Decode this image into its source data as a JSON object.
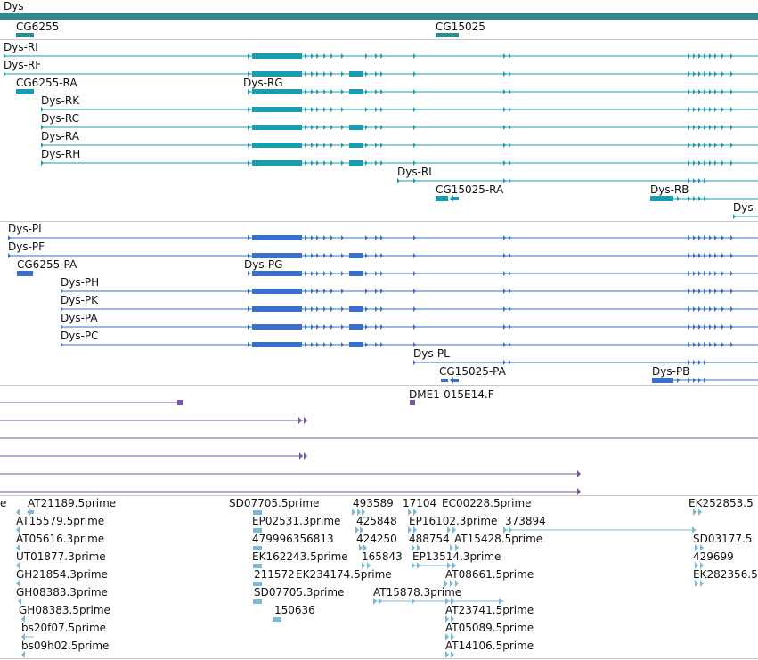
{
  "gene": {
    "label": "Dys",
    "color": "#2e8b8b",
    "subgenes": [
      {
        "id": "cg6255",
        "label": "CG6255"
      },
      {
        "id": "cg15025",
        "label": "CG15025"
      }
    ]
  },
  "transcripts": {
    "color": "#1a9cb0",
    "rows": [
      {
        "label": "Dys-RI"
      },
      {
        "label": "Dys-RF"
      },
      {
        "label": "CG6255-RA",
        "secondary_label": "Dys-RG"
      },
      {
        "label": "Dys-RK"
      },
      {
        "label": "Dys-RC"
      },
      {
        "label": "Dys-RA"
      },
      {
        "label": "Dys-RH"
      },
      {
        "label": "Dys-RL"
      },
      {
        "label": "CG15025-RA",
        "secondary_label": "Dys-RB"
      },
      {
        "label": "Dys-RJ"
      }
    ]
  },
  "proteins": {
    "color": "#3b6fc8",
    "rows": [
      {
        "label": "Dys-PI"
      },
      {
        "label": "Dys-PF"
      },
      {
        "label": "CG6255-PA",
        "secondary_label": "Dys-PG"
      },
      {
        "label": "Dys-PH"
      },
      {
        "label": "Dys-PK"
      },
      {
        "label": "Dys-PA"
      },
      {
        "label": "Dys-PC"
      },
      {
        "label": "Dys-PL"
      },
      {
        "label": "CG15025-PA",
        "secondary_label": "Dys-PB"
      }
    ]
  },
  "clones": {
    "color": "#7a55a8",
    "label": "DME1-015E14.F"
  },
  "ests": {
    "color": "#7fb8d6",
    "labels": [
      "e",
      "AT21189.5prime",
      "AT15579.5prime",
      "AT05616.3prime",
      "UT01877.3prime",
      "GH21854.3prime",
      "GH08383.3prime",
      "GH08383.5prime",
      "bs20f07.5prime",
      "bs09h02.5prime",
      "SD07705.5prime",
      "EP02531.3prime",
      "479996356813",
      "EK162243.5prime",
      "211572",
      "EK234174.5prime",
      "SD07705.3prime",
      "150636",
      "493589",
      "425848",
      "424250",
      "165843",
      "17104",
      "EC00228.5prime",
      "EP16102.3prime",
      "373894",
      "488754",
      "AT15428.5prime",
      "EP13514.3prime",
      "AT08661.5prime",
      "AT15878.3prime",
      "AT23741.5prime",
      "AT05089.5prime",
      "AT14106.5prime",
      "EK252853.5",
      "SD03177.5",
      "429699",
      "EK282356.5"
    ]
  }
}
